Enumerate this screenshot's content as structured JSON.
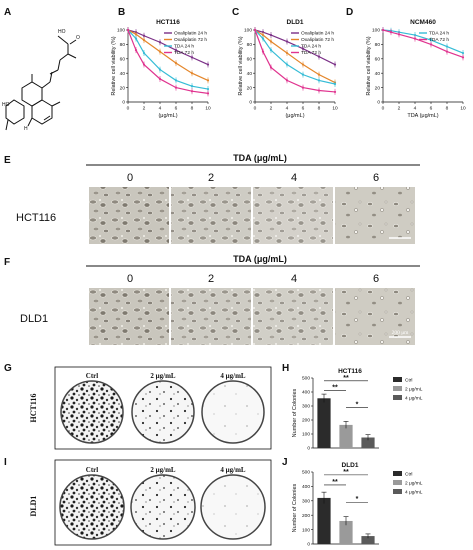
{
  "figure": {
    "panel_letters": {
      "A": "A",
      "B": "B",
      "C": "C",
      "D": "D",
      "E": "E",
      "F": "F",
      "G": "G",
      "H": "H",
      "I": "I",
      "J": "J"
    },
    "micrographs": [
      {
        "title": "TDA (μg/mL)",
        "doses": [
          "0",
          "2",
          "4",
          "6"
        ],
        "cell_line": "HCT116",
        "scale_label": ""
      },
      {
        "title": "TDA (μg/mL)",
        "doses": [
          "0",
          "2",
          "4",
          "6"
        ],
        "cell_line": "DLD1",
        "scale_label": "200 μm"
      }
    ],
    "dishes": [
      {
        "row_label": "HCT116",
        "cols": [
          "Ctrl",
          "2 μg/mL",
          "4 μg/mL"
        ]
      },
      {
        "row_label": "DLD1",
        "cols": [
          "Ctrl",
          "2 μg/mL",
          "4 μg/mL"
        ]
      }
    ],
    "structure": {
      "labels": [
        "HO",
        "O",
        "HO",
        "H"
      ]
    }
  },
  "colors": {
    "oxali24": "#7a2f86",
    "oxali72": "#e4862a",
    "tda24": "#35bcd6",
    "tda72": "#e0338f",
    "bar_ctrl": "#2b2b2b",
    "bar_2": "#9a9a9a",
    "bar_4": "#5a5a5a"
  },
  "chart_data": [
    {
      "type": "line",
      "title": "HCT116",
      "xlabel": "(μg/mL)",
      "ylabel": "Relative cell viability (%)",
      "xlim": [
        0,
        10
      ],
      "ylim": [
        0,
        100
      ],
      "xticks": [
        "0",
        "2",
        "4",
        "6",
        "8",
        "10"
      ],
      "yticks": [
        "0",
        "20",
        "40",
        "60",
        "80",
        "100"
      ],
      "series": [
        {
          "name": "Oxaliplatin 24 h",
          "color_key": "oxali24",
          "x": [
            0,
            1,
            2,
            4,
            6,
            8,
            10
          ],
          "y": [
            100,
            97,
            92,
            83,
            72,
            62,
            52
          ]
        },
        {
          "name": "Oxaliplatin 72 h",
          "color_key": "oxali72",
          "x": [
            0,
            1,
            2,
            4,
            6,
            8,
            10
          ],
          "y": [
            100,
            94,
            86,
            70,
            54,
            40,
            30
          ]
        },
        {
          "name": "TDA 24 h",
          "color_key": "tda24",
          "x": [
            0,
            1,
            2,
            4,
            6,
            8,
            10
          ],
          "y": [
            100,
            88,
            68,
            45,
            30,
            22,
            18
          ]
        },
        {
          "name": "TDA 72 h",
          "color_key": "tda72",
          "x": [
            0,
            1,
            2,
            4,
            6,
            8,
            10
          ],
          "y": [
            100,
            72,
            52,
            32,
            20,
            15,
            12
          ]
        }
      ]
    },
    {
      "type": "line",
      "title": "DLD1",
      "xlabel": "(μg/mL)",
      "ylabel": "Relative cell viability (%)",
      "xlim": [
        0,
        10
      ],
      "ylim": [
        0,
        100
      ],
      "xticks": [
        "0",
        "2",
        "4",
        "6",
        "8",
        "10"
      ],
      "yticks": [
        "0",
        "20",
        "40",
        "60",
        "80",
        "100"
      ],
      "series": [
        {
          "name": "Oxaliplatin 24 h",
          "color_key": "oxali24",
          "x": [
            0,
            1,
            2,
            4,
            6,
            8,
            10
          ],
          "y": [
            100,
            97,
            93,
            84,
            74,
            63,
            52
          ]
        },
        {
          "name": "Oxaliplatin 72 h",
          "color_key": "oxali72",
          "x": [
            0,
            1,
            2,
            4,
            6,
            8,
            10
          ],
          "y": [
            100,
            93,
            84,
            68,
            52,
            38,
            27
          ]
        },
        {
          "name": "TDA 24 h",
          "color_key": "tda24",
          "x": [
            0,
            1,
            2,
            4,
            6,
            8,
            10
          ],
          "y": [
            100,
            88,
            72,
            52,
            38,
            30,
            25
          ]
        },
        {
          "name": "TDA 72 h",
          "color_key": "tda72",
          "x": [
            0,
            1,
            2,
            4,
            6,
            8,
            10
          ],
          "y": [
            100,
            70,
            48,
            30,
            20,
            16,
            14
          ]
        }
      ]
    },
    {
      "type": "line",
      "title": "NCM460",
      "xlabel": "TDA (μg/mL)",
      "ylabel": "Relative cell viability (%)",
      "xlim": [
        0,
        10
      ],
      "ylim": [
        0,
        100
      ],
      "xticks": [
        "0",
        "2",
        "4",
        "6",
        "8",
        "10"
      ],
      "yticks": [
        "0",
        "20",
        "40",
        "60",
        "80",
        "100"
      ],
      "series": [
        {
          "name": "TDA 24 h",
          "color_key": "tda24",
          "x": [
            0,
            1,
            2,
            4,
            6,
            8,
            10
          ],
          "y": [
            100,
            99,
            97,
            93,
            86,
            77,
            68
          ]
        },
        {
          "name": "TDA 72 h",
          "color_key": "tda72",
          "x": [
            0,
            1,
            2,
            4,
            6,
            8,
            10
          ],
          "y": [
            100,
            97,
            94,
            88,
            80,
            70,
            62
          ]
        }
      ]
    },
    {
      "type": "bar",
      "title": "HCT116",
      "ylabel": "Number of Colonies",
      "ylim": [
        0,
        500
      ],
      "yticks": [
        "0",
        "100",
        "200",
        "300",
        "400",
        "500"
      ],
      "categories": [
        "Ctrl",
        "2 μg/mL",
        "4 μg/mL"
      ],
      "values": [
        355,
        165,
        75
      ],
      "errors": [
        30,
        25,
        20
      ],
      "color_keys": [
        "bar_ctrl",
        "bar_2",
        "bar_4"
      ],
      "legend": [
        "Ctrl",
        "2 μg/mL",
        "4 μg/mL"
      ],
      "significance": [
        {
          "from": 0,
          "to": 2,
          "label": "**"
        },
        {
          "from": 0,
          "to": 1,
          "label": "**"
        },
        {
          "from": 1,
          "to": 2,
          "label": "*"
        }
      ]
    },
    {
      "type": "bar",
      "title": "DLD1",
      "ylabel": "Number of Colonies",
      "ylim": [
        0,
        500
      ],
      "yticks": [
        "0",
        "100",
        "200",
        "300",
        "400",
        "500"
      ],
      "categories": [
        "Ctrl",
        "2 μg/mL",
        "4 μg/mL"
      ],
      "values": [
        320,
        160,
        55
      ],
      "errors": [
        40,
        30,
        15
      ],
      "color_keys": [
        "bar_ctrl",
        "bar_2",
        "bar_4"
      ],
      "legend": [
        "Ctrl",
        "2 μg/mL",
        "4 μg/mL"
      ],
      "significance": [
        {
          "from": 0,
          "to": 2,
          "label": "**"
        },
        {
          "from": 0,
          "to": 1,
          "label": "**"
        },
        {
          "from": 1,
          "to": 2,
          "label": "*"
        }
      ]
    }
  ]
}
